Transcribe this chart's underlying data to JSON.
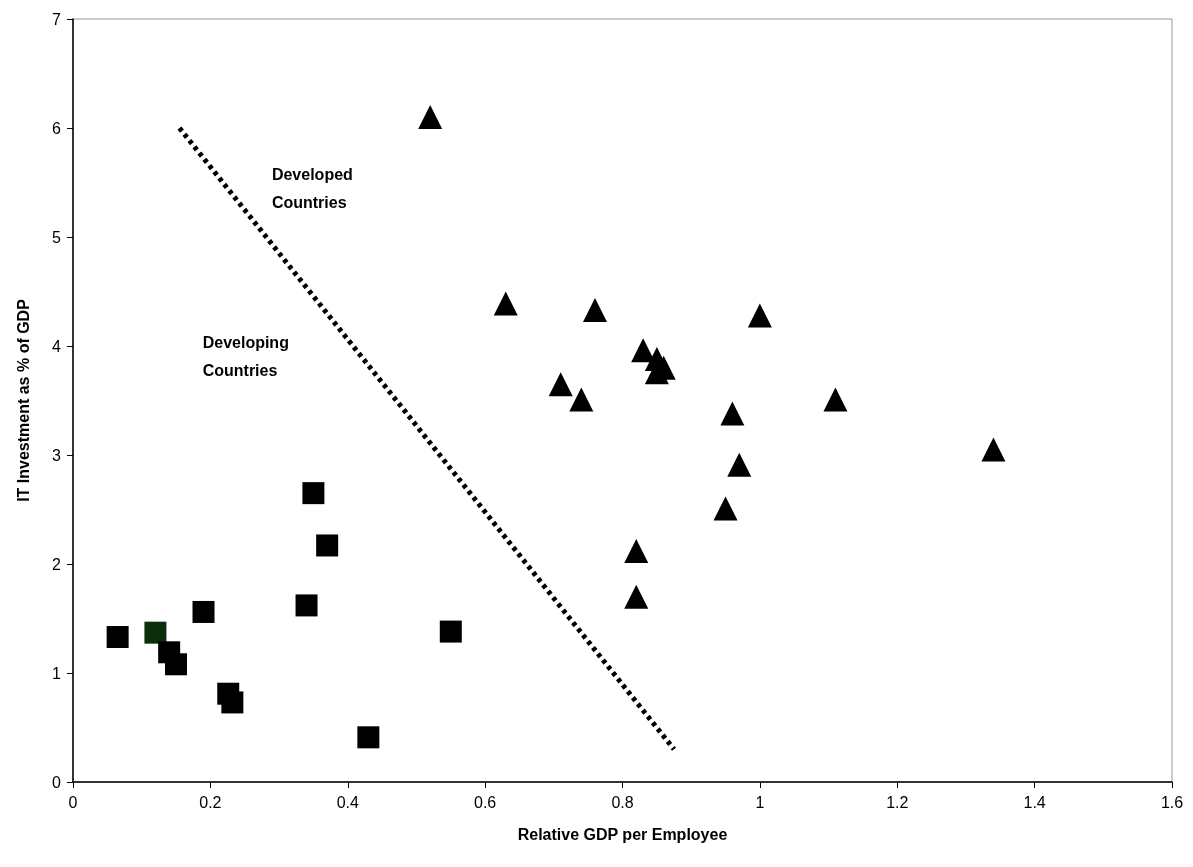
{
  "chart_data": {
    "type": "scatter",
    "xlabel": "Relative GDP per Employee",
    "ylabel": "IT Investment as % of GDP",
    "xlim": [
      0,
      1.6
    ],
    "xticks": [
      0,
      0.2,
      0.4,
      0.6,
      0.8,
      1,
      1.2,
      1.4,
      1.6
    ],
    "ylim": [
      0,
      7
    ],
    "yticks": [
      0,
      1,
      2,
      3,
      4,
      5,
      6,
      7
    ],
    "grid": false,
    "annotations": [
      "Developed\nCountries",
      "Developing\nCountries"
    ],
    "series": [
      {
        "marker": "triangle",
        "color": "#000000",
        "x": [
          0.52,
          0.63,
          0.76,
          1.0,
          0.83,
          0.85,
          0.86,
          0.85,
          0.71,
          0.74,
          1.11,
          0.96,
          0.97,
          1.34,
          0.95,
          0.82,
          0.82
        ],
        "values": [
          6.1,
          4.39,
          4.33,
          4.28,
          3.96,
          3.88,
          3.8,
          3.76,
          3.65,
          3.51,
          3.51,
          3.38,
          2.91,
          3.05,
          2.51,
          2.12,
          1.7
        ]
      },
      {
        "marker": "square",
        "color": "#000000",
        "colors": [
          "#000000",
          "#0b2e0b",
          "#000000",
          "#000000",
          "#000000",
          "#000000",
          "#000000",
          "#000000",
          "#000000",
          "#000000",
          "#000000",
          "#000000"
        ],
        "x": [
          0.065,
          0.12,
          0.19,
          0.14,
          0.15,
          0.226,
          0.232,
          0.34,
          0.35,
          0.37,
          0.43,
          0.55
        ],
        "values": [
          1.33,
          1.37,
          1.56,
          1.19,
          1.08,
          0.81,
          0.73,
          1.62,
          2.65,
          2.17,
          0.41,
          1.38
        ]
      },
      {
        "type": "line",
        "marker": "none",
        "line_style": "dotted",
        "color": "#000000",
        "x": [
          0.155,
          0.875
        ],
        "values": [
          6.0,
          0.3
        ]
      }
    ]
  }
}
